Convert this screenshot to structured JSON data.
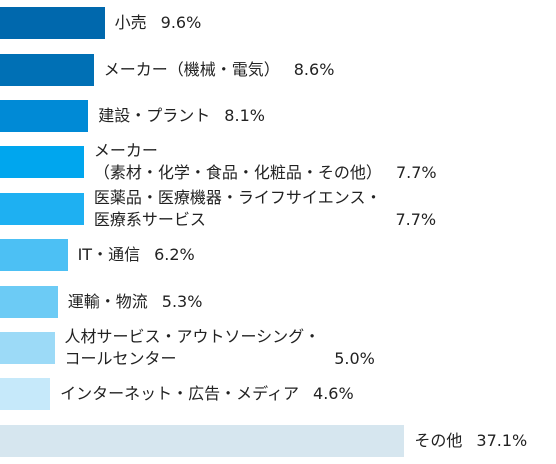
{
  "chart_data": {
    "type": "bar",
    "orientation": "horizontal",
    "categories": [
      "小売",
      "メーカー（機械・電気）",
      "建設・プラント",
      "メーカー\n（素材・化学・食品・化粧品・その他）",
      "医薬品・医療機器・ライフサイエンス・\n医療系サービス",
      "IT・通信",
      "運輸・物流",
      "人材サービス・アウトソーシング・\nコールセンター",
      "インターネット・広告・メディア",
      "その他"
    ],
    "values": [
      9.6,
      8.6,
      8.1,
      7.7,
      7.7,
      6.2,
      5.3,
      5.0,
      4.6,
      37.1
    ],
    "value_labels": [
      "9.6%",
      "8.6%",
      "8.1%",
      "7.7%",
      "7.7%",
      "6.2%",
      "5.3%",
      "5.0%",
      "4.6%",
      "37.1%"
    ],
    "colors": [
      "#0068ad",
      "#0070b5",
      "#008ad6",
      "#00a6ee",
      "#1eb0f2",
      "#4cc0f4",
      "#6ccbf5",
      "#9cdaf7",
      "#c6e9fa",
      "#d6e6ef"
    ]
  }
}
